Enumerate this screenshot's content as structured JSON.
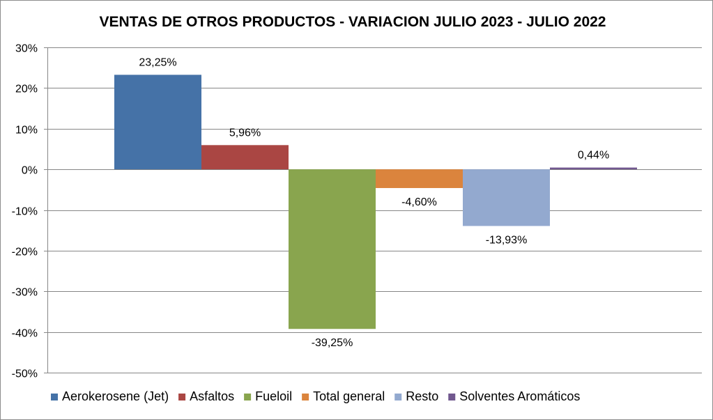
{
  "chart_data": {
    "type": "bar",
    "title": "VENTAS DE OTROS PRODUCTOS - VARIACION JULIO 2023 - JULIO 2022",
    "xlabel": "",
    "ylabel": "",
    "ylim": [
      -50,
      30
    ],
    "yticks": [
      30,
      20,
      10,
      0,
      -10,
      -20,
      -30,
      -40,
      -50
    ],
    "ytick_labels": [
      "30%",
      "20%",
      "10%",
      "0%",
      "-10%",
      "-20%",
      "-30%",
      "-40%",
      "-50%"
    ],
    "grid": true,
    "legend_position": "bottom",
    "series": [
      {
        "name": "Aerokerosene (Jet)",
        "value": 23.25,
        "label": "23,25%",
        "color": "#4572A7"
      },
      {
        "name": "Asfaltos",
        "value": 5.96,
        "label": "5,96%",
        "color": "#AA4643"
      },
      {
        "name": "Fueloil",
        "value": -39.25,
        "label": "-39,25%",
        "color": "#89A54E"
      },
      {
        "name": "Total general",
        "value": -4.6,
        "label": "-4,60%",
        "color": "#DB843D"
      },
      {
        "name": "Resto",
        "value": -13.93,
        "label": "-13,93%",
        "color": "#93A9CF"
      },
      {
        "name": "Solventes Aromáticos",
        "value": 0.44,
        "label": "0,44%",
        "color": "#71588F"
      }
    ]
  }
}
